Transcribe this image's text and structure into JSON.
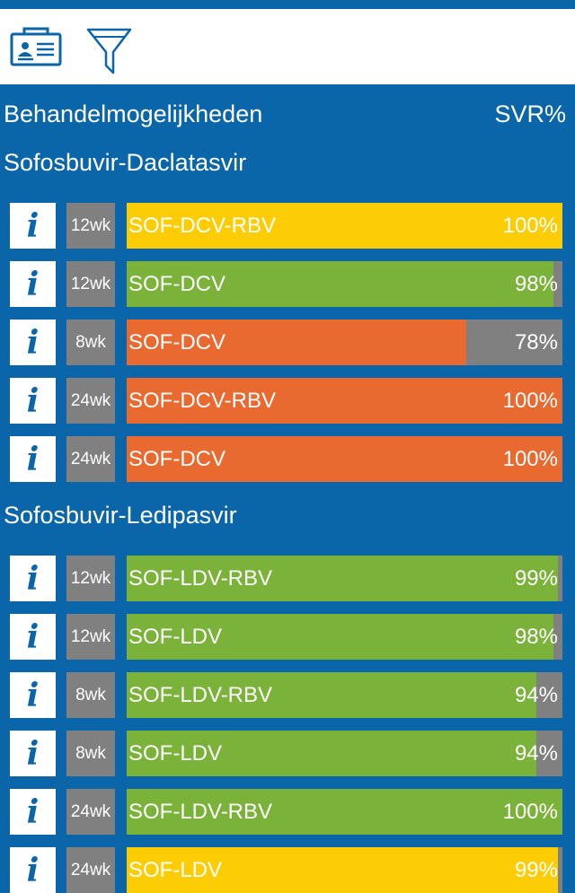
{
  "header": {
    "title": "Behandelmogelijkheden",
    "svr_label": "SVR%"
  },
  "colors": {
    "yellow": "#fccd05",
    "green": "#7bb23a",
    "orange": "#e86a30",
    "gray": "#808080",
    "blue": "#0a66a8"
  },
  "groups": [
    {
      "title": "Sofosbuvir-Daclatasvir",
      "rows": [
        {
          "duration": "12wk",
          "name": "SOF-DCV-RBV",
          "svr": "100%",
          "fraction": 1.0,
          "color": "#fccd05"
        },
        {
          "duration": "12wk",
          "name": "SOF-DCV",
          "svr": "98%",
          "fraction": 0.98,
          "color": "#7bb23a"
        },
        {
          "duration": "8wk",
          "name": "SOF-DCV",
          "svr": "78%",
          "fraction": 0.78,
          "color": "#e86a30"
        },
        {
          "duration": "24wk",
          "name": "SOF-DCV-RBV",
          "svr": "100%",
          "fraction": 1.0,
          "color": "#e86a30"
        },
        {
          "duration": "24wk",
          "name": "SOF-DCV",
          "svr": "100%",
          "fraction": 1.0,
          "color": "#e86a30"
        }
      ]
    },
    {
      "title": "Sofosbuvir-Ledipasvir",
      "rows": [
        {
          "duration": "12wk",
          "name": "SOF-LDV-RBV",
          "svr": "99%",
          "fraction": 0.99,
          "color": "#7bb23a"
        },
        {
          "duration": "12wk",
          "name": "SOF-LDV",
          "svr": "98%",
          "fraction": 0.98,
          "color": "#7bb23a"
        },
        {
          "duration": "8wk",
          "name": "SOF-LDV-RBV",
          "svr": "94%",
          "fraction": 0.94,
          "color": "#7bb23a"
        },
        {
          "duration": "8wk",
          "name": "SOF-LDV",
          "svr": "94%",
          "fraction": 0.94,
          "color": "#7bb23a"
        },
        {
          "duration": "24wk",
          "name": "SOF-LDV-RBV",
          "svr": "100%",
          "fraction": 1.0,
          "color": "#7bb23a"
        },
        {
          "duration": "24wk",
          "name": "SOF-LDV",
          "svr": "99%",
          "fraction": 0.99,
          "color": "#fccd05"
        }
      ]
    }
  ]
}
